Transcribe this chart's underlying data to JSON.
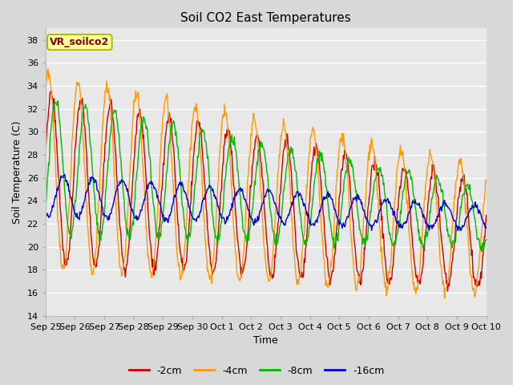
{
  "title": "Soil CO2 East Temperatures",
  "xlabel": "Time",
  "ylabel": "Soil Temperature (C)",
  "ylim": [
    14,
    39
  ],
  "yticks": [
    14,
    16,
    18,
    20,
    22,
    24,
    26,
    28,
    30,
    32,
    34,
    36,
    38
  ],
  "fig_bg_color": "#d8d8d8",
  "plot_bg_color": "#e8e8e8",
  "series": [
    {
      "label": "-2cm",
      "color": "#cc0000"
    },
    {
      "label": "-4cm",
      "color": "#ff9900"
    },
    {
      "label": "-8cm",
      "color": "#00bb00"
    },
    {
      "label": "-16cm",
      "color": "#0000cc"
    }
  ],
  "annotation": {
    "text": "VR_soilco2",
    "text_color": "#880000",
    "bg_color": "#ffff99",
    "edge_color": "#aaaa00"
  },
  "x_tick_labels": [
    "Sep 25",
    "Sep 26",
    "Sep 27",
    "Sep 28",
    "Sep 29",
    "Sep 30",
    "Oct 1",
    "Oct 2",
    "Oct 3",
    "Oct 4",
    "Oct 5",
    "Oct 6",
    "Oct 7",
    "Oct 8",
    "Oct 9",
    "Oct 10"
  ],
  "n_points": 720
}
